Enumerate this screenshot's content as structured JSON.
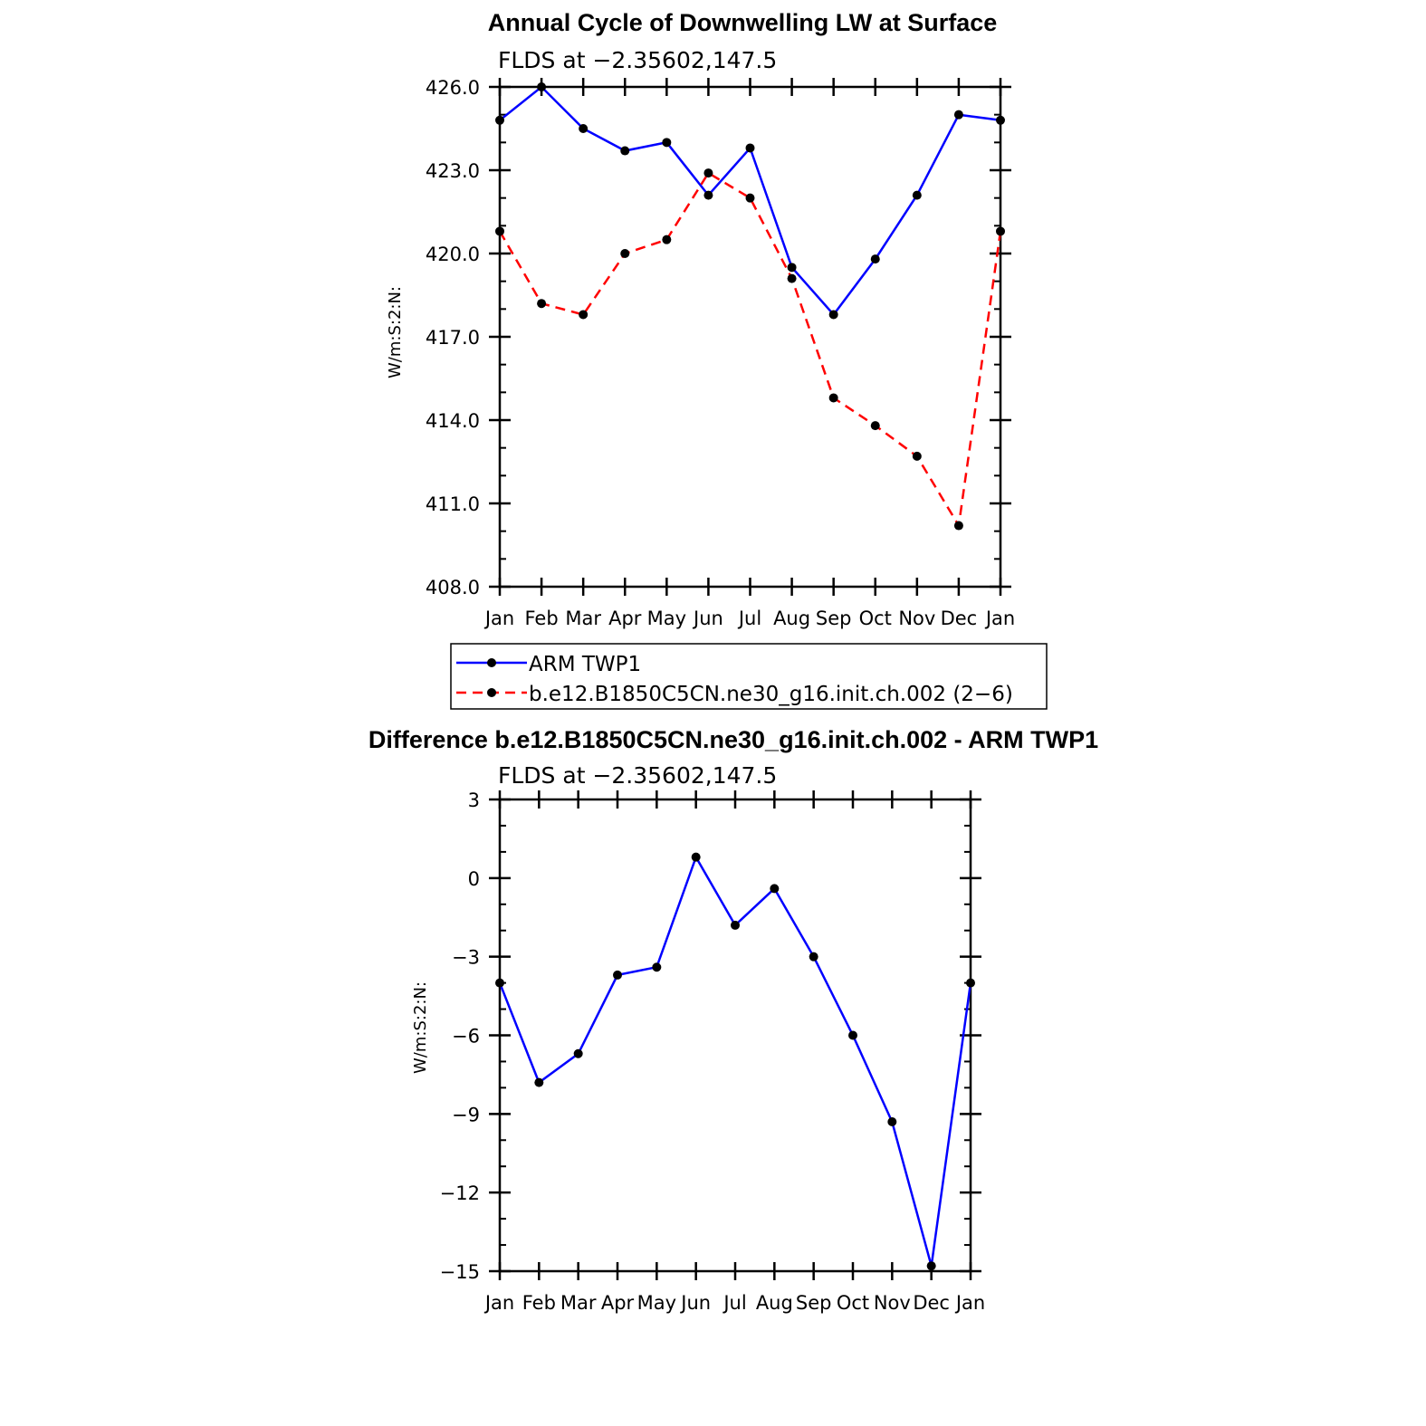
{
  "colors": {
    "obs": "#0000ff",
    "model": "#ff0000",
    "diff": "#0000ff"
  },
  "months": [
    "Jan",
    "Feb",
    "Mar",
    "Apr",
    "May",
    "Jun",
    "Jul",
    "Aug",
    "Sep",
    "Oct",
    "Nov",
    "Dec",
    "Jan"
  ],
  "legend": {
    "obs": "ARM TWP1",
    "model": "b.e12.B1850C5CN.ne30_g16.init.ch.002 (2−6)"
  },
  "chart_data": [
    {
      "type": "line",
      "title": "Annual Cycle of Downwelling LW at Surface",
      "subtitle": "FLDS at −2.35602,147.5",
      "ylabel": "W/m:S:2:N:",
      "xlabel": "",
      "ylim": [
        408,
        426
      ],
      "yticks": [
        "426.0",
        "423.0",
        "420.0",
        "417.0",
        "414.0",
        "411.0",
        "408.0"
      ],
      "ytick_values": [
        426,
        423,
        420,
        417,
        414,
        411,
        408
      ],
      "legend_position": "bottom",
      "series": [
        {
          "name": "ARM TWP1",
          "style": "solid",
          "values": [
            424.8,
            426.0,
            424.5,
            423.7,
            424.0,
            422.1,
            423.8,
            419.5,
            417.8,
            419.8,
            422.1,
            425.0,
            424.8
          ]
        },
        {
          "name": "b.e12.B1850C5CN.ne30_g16.init.ch.002 (2−6)",
          "style": "dashed",
          "values": [
            420.8,
            418.2,
            417.8,
            420.0,
            420.5,
            422.9,
            422.0,
            419.1,
            414.8,
            413.8,
            412.7,
            410.2,
            420.8
          ]
        }
      ]
    },
    {
      "type": "line",
      "title": "Difference b.e12.B1850C5CN.ne30_g16.init.ch.002 - ARM TWP1",
      "subtitle": "FLDS at −2.35602,147.5",
      "ylabel": "W/m:S:2:N:",
      "xlabel": "",
      "ylim": [
        -15,
        3
      ],
      "yticks": [
        "3",
        "0",
        "−3",
        "−6",
        "−9",
        "−12",
        "−15"
      ],
      "ytick_values": [
        3,
        0,
        -3,
        -6,
        -9,
        -12,
        -15
      ],
      "series": [
        {
          "name": "",
          "style": "solid",
          "values": [
            -4.0,
            -7.8,
            -6.7,
            -3.7,
            -3.4,
            0.8,
            -1.8,
            -0.4,
            -3.0,
            -6.0,
            -9.3,
            -14.8,
            -4.0
          ]
        }
      ]
    }
  ]
}
